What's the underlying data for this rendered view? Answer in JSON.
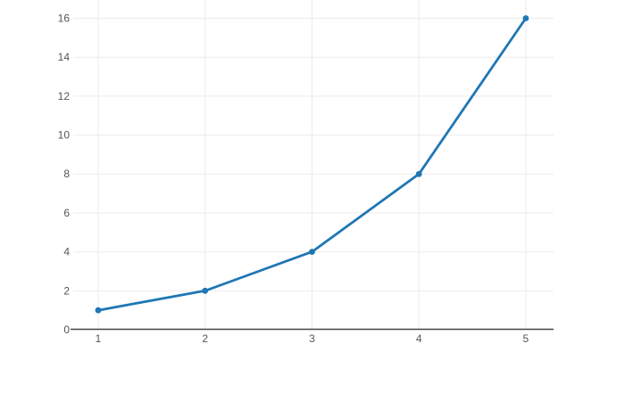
{
  "chart_data": {
    "type": "line",
    "title": "",
    "xlabel": "",
    "ylabel": "",
    "x": [
      1,
      2,
      3,
      4,
      5
    ],
    "y": [
      1,
      2,
      4,
      8,
      16
    ],
    "x_tick_labels": [
      "1",
      "2",
      "3",
      "4",
      "5"
    ],
    "y_tick_labels": [
      "0",
      "2",
      "4",
      "6",
      "8",
      "10",
      "12",
      "14",
      "16"
    ],
    "x_ticks": [
      1,
      2,
      3,
      4,
      5
    ],
    "y_ticks": [
      0,
      2,
      4,
      6,
      8,
      10,
      12,
      14,
      16
    ],
    "xlim": [
      0.766,
      5.26
    ],
    "ylim": [
      0,
      16.94
    ],
    "grid": true,
    "legend": "none",
    "colors": {
      "line": "#1f77b4",
      "marker": "#1f77b4",
      "grid": "#ebebeb",
      "axis_line": "#444444",
      "tick_label": "#555555",
      "background": "#ffffff"
    },
    "marker_radius": 3.4,
    "line_width": 2.8
  }
}
